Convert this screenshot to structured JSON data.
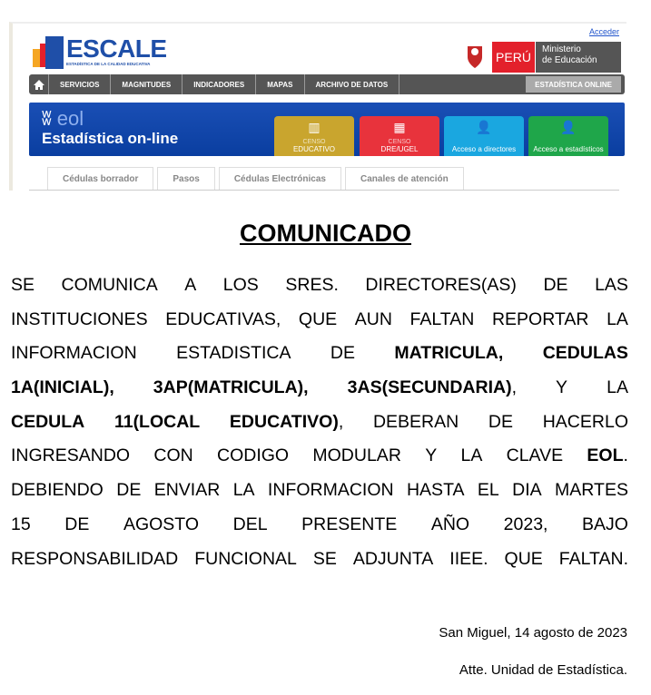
{
  "web": {
    "login_link": "Acceder",
    "logo_word": "ESCALE",
    "logo_tagline": "ESTADÍSTICA DE LA CALIDAD EDUCATIVA",
    "country": "PERÚ",
    "ministry_line1": "Ministerio",
    "ministry_line2": "de Educación",
    "nav": [
      "SERVICIOS",
      "MAGNITUDES",
      "INDICADORES",
      "MAPAS",
      "ARCHIVO DE DATOS"
    ],
    "nav_active": "ESTADÍSTICA ONLINE",
    "eol_logo": "eol",
    "eol_title": "Estadística on-line",
    "tiles": [
      {
        "small": "CENSO",
        "label": "EDUCATIVO",
        "color": "#c9a52e"
      },
      {
        "small": "CENSO",
        "label": "DRE/UGEL",
        "color": "#e8333c"
      },
      {
        "label": "Acceso a directores",
        "color": "#1aa7e0"
      },
      {
        "label": "Acceso a estadísticos",
        "color": "#1fa64a"
      }
    ],
    "tabs": [
      "Cédulas borrador",
      "Pasos",
      "Cédulas Electrónicas",
      "Canales de atención"
    ]
  },
  "title": "COMUNICADO",
  "lines": [
    [
      {
        "t": "SE COMUNICA A LOS SRES. DIRECTORES(AS) DE LAS",
        "b": false
      }
    ],
    [
      {
        "t": "INSTITUCIONES EDUCATIVAS, QUE AUN FALTAN REPORTAR LA",
        "b": false
      }
    ],
    [
      {
        "t": "INFORMACION ESTADISTICA DE",
        "b": false
      },
      {
        "t": "MATRICULA, CEDULAS",
        "b": true
      }
    ],
    [
      {
        "t": "1A(INICIAL), 3AP(MATRICULA), 3AS(SECUNDARIA)",
        "b": true
      },
      {
        "t": ", Y LA",
        "b": false
      }
    ],
    [
      {
        "t": "CEDULA 11(LOCAL EDUCATIVO)",
        "b": true
      },
      {
        "t": ", DEBERAN DE HACERLO",
        "b": false
      }
    ],
    [
      {
        "t": "INGRESANDO CON CODIGO MODULAR Y LA CLAVE",
        "b": false
      },
      {
        "t": "EOL",
        "b": true
      },
      {
        "t": ".",
        "b": false
      }
    ],
    [
      {
        "t": "DEBIENDO DE ENVIAR LA INFORMACION HASTA EL DIA MARTES",
        "b": false
      }
    ],
    [
      {
        "t": "15 DE AGOSTO DEL PRESENTE AÑO 2023, BAJO",
        "b": false
      }
    ],
    [
      {
        "t": "RESPONSABILIDAD FUNCIONAL SE ADJUNTA IIEE. QUE FALTAN.",
        "b": false
      }
    ]
  ],
  "place_date": "San Miguel, 14 agosto de 2023",
  "signature": "Atte. Unidad de Estadística."
}
